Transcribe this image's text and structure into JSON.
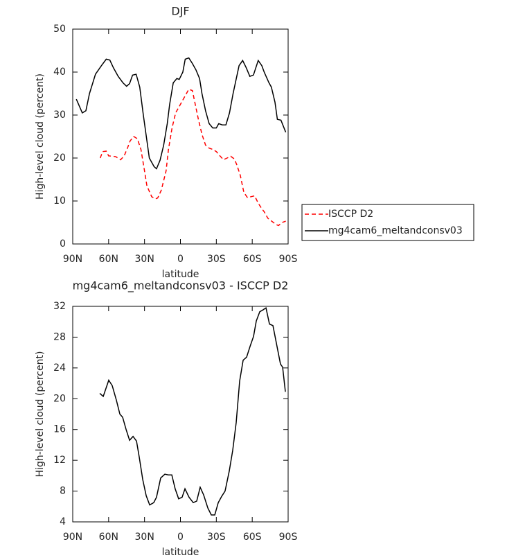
{
  "chart_data": [
    {
      "type": "line",
      "title": "DJF",
      "xlabel": "latitude",
      "ylabel": "High-level cloud (percent)",
      "xlim": [
        90,
        -90
      ],
      "xticks": [
        {
          "value": 90,
          "label": "90N"
        },
        {
          "value": 60,
          "label": "60N"
        },
        {
          "value": 30,
          "label": "30N"
        },
        0,
        {
          "value": -30,
          "label": "30S"
        },
        {
          "value": -60,
          "label": "60S"
        },
        {
          "value": -90,
          "label": "90S"
        }
      ],
      "ylim": [
        0,
        50
      ],
      "yticks": [
        0,
        10,
        20,
        30,
        40,
        50
      ],
      "legend": "lower right",
      "series": [
        {
          "name": "ISCCP D2",
          "color": "#ff0000",
          "linestyle": "dashed",
          "x": [
            67,
            65,
            62,
            60,
            56,
            54,
            50,
            47,
            44,
            42,
            39,
            36,
            33,
            30,
            28,
            24,
            21,
            19,
            16,
            12,
            10,
            7,
            4,
            2,
            -1,
            -4,
            -7,
            -10,
            -12,
            -15,
            -18,
            -21,
            -24,
            -27,
            -30,
            -33,
            -36,
            -39,
            -42,
            -45,
            -47,
            -50,
            -53,
            -56,
            -59,
            -62,
            -65,
            -68,
            -70,
            -73,
            -80,
            -82,
            -85,
            -88
          ],
          "values": [
            20,
            21.5,
            21.6,
            20.5,
            20.4,
            20.3,
            19.6,
            20.5,
            22.5,
            24,
            25,
            24.5,
            22,
            17,
            13.5,
            11,
            10.5,
            10.7,
            12.5,
            17,
            22,
            27,
            30.5,
            31.5,
            33,
            34.5,
            36,
            35.7,
            33,
            29,
            25.5,
            23,
            22.3,
            22,
            21.5,
            20.5,
            19.6,
            20,
            20.4,
            19.8,
            18.5,
            16,
            12,
            10.8,
            11,
            11.2,
            9.5,
            8.2,
            7.5,
            6,
            4.5,
            4.3,
            5,
            5.3
          ]
        },
        {
          "name": "mg4cam6_meltandconsv03",
          "color": "#000000",
          "linestyle": "solid",
          "x": [
            87,
            82,
            79,
            76,
            71,
            66,
            62,
            59,
            56,
            52,
            48,
            45,
            42.5,
            40,
            37,
            34,
            31,
            28,
            26,
            22,
            20,
            17,
            14,
            11,
            9,
            6,
            3,
            1,
            -2,
            -4,
            -7,
            -10,
            -13,
            -16,
            -18,
            -21,
            -24,
            -27,
            -30,
            -32,
            -35,
            -38,
            -41,
            -44,
            -49,
            -52,
            -55,
            -58,
            -61,
            -65,
            -68,
            -70,
            -74,
            -76,
            -79,
            -81,
            -84,
            -88
          ],
          "values": [
            33.7,
            30.5,
            31,
            35,
            39.5,
            41.5,
            43,
            42.8,
            41,
            39,
            37.5,
            36.7,
            37.3,
            39.3,
            39.5,
            36.5,
            30,
            24,
            20,
            18,
            17.5,
            19.5,
            23,
            28,
            32.5,
            37.5,
            38.5,
            38.3,
            40,
            43,
            43.3,
            42,
            40.5,
            38.5,
            35,
            31,
            28,
            27,
            27,
            28,
            27.7,
            27.7,
            30.5,
            35,
            41.5,
            42.7,
            41,
            39,
            39.3,
            42.7,
            41.5,
            40,
            37.5,
            36.5,
            33,
            29,
            28.8,
            26
          ]
        }
      ]
    },
    {
      "type": "line",
      "title": "mg4cam6_meltandconsv03 - ISCCP D2",
      "xlabel": "latitude",
      "ylabel": "High-level cloud (percent)",
      "xlim": [
        90,
        -90
      ],
      "xticks": [
        {
          "value": 90,
          "label": "90N"
        },
        {
          "value": 60,
          "label": "60N"
        },
        {
          "value": 30,
          "label": "30N"
        },
        0,
        {
          "value": -30,
          "label": "30S"
        },
        {
          "value": -60,
          "label": "60S"
        },
        {
          "value": -90,
          "label": "90S"
        }
      ],
      "ylim": [
        4,
        32
      ],
      "yticks": [
        4,
        8,
        12,
        16,
        20,
        24,
        28,
        32
      ],
      "series": [
        {
          "color": "#000000",
          "linestyle": "solid",
          "x": [
            67.4,
            64.5,
            59.9,
            57,
            53.5,
            50.6,
            48.3,
            45.4,
            42.5,
            39.6,
            36.7,
            34.4,
            31.5,
            28.6,
            25.7,
            22.3,
            20,
            16.5,
            13,
            10.1,
            7.2,
            4.4,
            1.5,
            -1.4,
            -3.8,
            -7.2,
            -10.7,
            -13.6,
            -16.5,
            -19.4,
            -22.9,
            -25.8,
            -28.7,
            -31.6,
            -34.4,
            -37.3,
            -40.8,
            -43.7,
            -46.6,
            -49.5,
            -52.4,
            -55.3,
            -58.2,
            -61.1,
            -63.4,
            -66.3,
            -68.6,
            -71.5,
            -74.4,
            -77.3,
            -80.2,
            -83.6,
            -85.4,
            -87.7
          ],
          "values": [
            20.7,
            20.3,
            22.4,
            21.7,
            19.8,
            18,
            17.6,
            16,
            14.6,
            15.1,
            14.5,
            12.4,
            9.5,
            7.4,
            6.2,
            6.5,
            7.2,
            9.7,
            10.2,
            10.1,
            10.1,
            8.3,
            7,
            7.2,
            8.3,
            7.2,
            6.5,
            6.7,
            8.5,
            7.5,
            5.8,
            4.9,
            4.9,
            6.5,
            7.3,
            8,
            10.6,
            13.3,
            16.9,
            22.3,
            25,
            25.4,
            26.8,
            28.1,
            30.1,
            31.3,
            31.5,
            31.8,
            29.7,
            29.5,
            27.2,
            24.5,
            24.1,
            20.9
          ]
        }
      ]
    }
  ]
}
